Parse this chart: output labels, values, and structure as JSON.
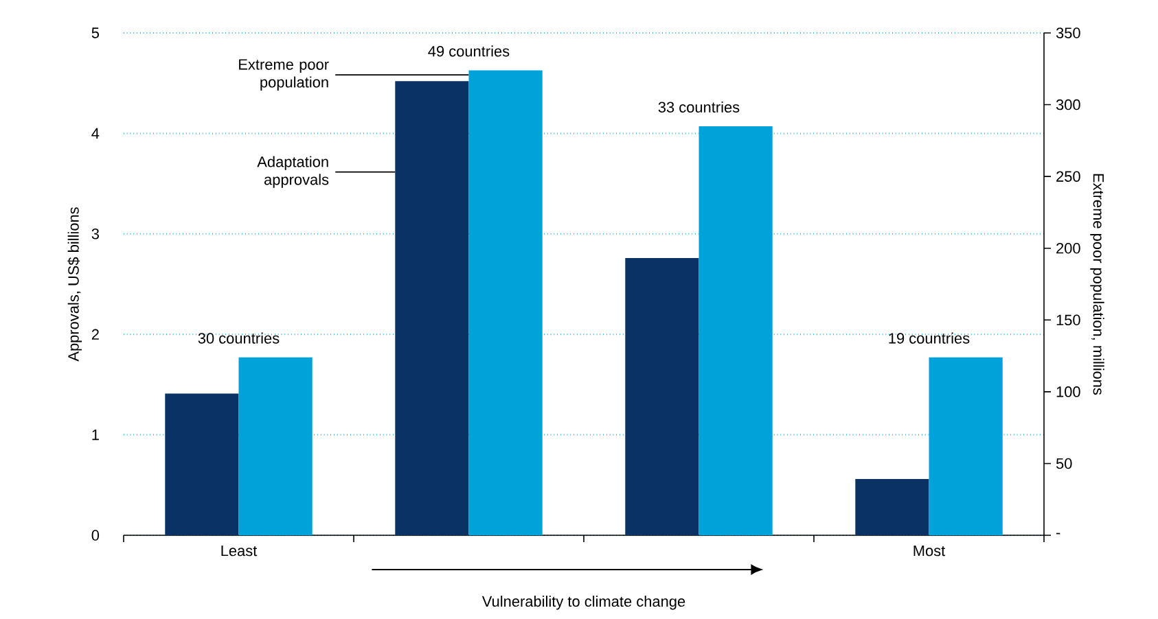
{
  "chart_data": {
    "type": "bar",
    "categories": [
      "Least",
      null,
      null,
      "Most"
    ],
    "xlabel": "Vulnerability to climate change",
    "ylabel": "Approvals, US$ billions",
    "y2label": "Extreme poor population, millions",
    "ylim": [
      0,
      5
    ],
    "yticks": [
      0,
      1,
      2,
      3,
      4,
      5
    ],
    "y2lim": [
      0,
      350
    ],
    "y2ticks": [
      {
        "value": 0,
        "label": "-"
      },
      50,
      100,
      150,
      200,
      250,
      300,
      350
    ],
    "grid": "y",
    "series": [
      {
        "name": "Adaptation approvals",
        "color": "#0a3264",
        "values": [
          1.41,
          4.52,
          2.76,
          0.56
        ]
      },
      {
        "name": "Extreme poor population",
        "color": "#00a3d9",
        "axis": "y2",
        "values": [
          124,
          324,
          285,
          124
        ]
      }
    ],
    "annotations": [
      "30 countries",
      "49 countries",
      "33 countries",
      "19 countries"
    ]
  }
}
